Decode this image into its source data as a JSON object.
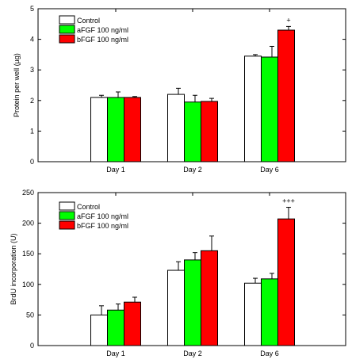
{
  "chart_data": [
    {
      "type": "bar",
      "categories": [
        "Day 1",
        "Day 2",
        "Day 6"
      ],
      "series": [
        {
          "name": "Control",
          "color": "#ffffff",
          "values": [
            2.1,
            2.2,
            3.45
          ],
          "errors": [
            0.07,
            0.2,
            0.05
          ]
        },
        {
          "name": "aFGF 100 ng/ml",
          "color": "#00ff00",
          "values": [
            2.1,
            1.95,
            3.42
          ],
          "errors": [
            0.18,
            0.22,
            0.35
          ]
        },
        {
          "name": "bFGF 100 ng/ml",
          "color": "#ff0000",
          "values": [
            2.1,
            1.97,
            4.3
          ],
          "errors": [
            0.03,
            0.1,
            0.12
          ]
        }
      ],
      "annotations": [
        {
          "category": "Day 6",
          "series": 2,
          "text": "+"
        }
      ],
      "ylabel": "Protein per well (µg)",
      "ylim": [
        0,
        5
      ],
      "yticks": [
        0,
        1,
        2,
        3,
        4,
        5
      ],
      "legend": "top-left",
      "grid": false
    },
    {
      "type": "bar",
      "categories": [
        "Day 1",
        "Day 2",
        "Day 6"
      ],
      "series": [
        {
          "name": "Control",
          "color": "#ffffff",
          "values": [
            50,
            123,
            102
          ],
          "errors": [
            15,
            14,
            8
          ]
        },
        {
          "name": "aFGF 100 ng/ml",
          "color": "#00ff00",
          "values": [
            58,
            140,
            109
          ],
          "errors": [
            10,
            12,
            9
          ]
        },
        {
          "name": "bFGF 100 ng/ml",
          "color": "#ff0000",
          "values": [
            71,
            155,
            207
          ],
          "errors": [
            8,
            24,
            19
          ]
        }
      ],
      "annotations": [
        {
          "category": "Day 6",
          "series": 2,
          "text": "+++"
        }
      ],
      "ylabel": "BrdU incorporation (U)",
      "ylim": [
        0,
        250
      ],
      "yticks": [
        0,
        50,
        100,
        150,
        200,
        250
      ],
      "legend": "top-left",
      "grid": false
    }
  ]
}
